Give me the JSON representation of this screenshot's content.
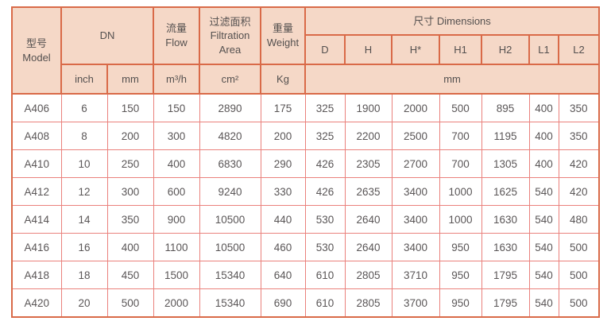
{
  "table": {
    "title": "filter model specification table",
    "header": {
      "model": "型号\nModel",
      "dn": "DN",
      "flow": "流量\nFlow",
      "filtration_area": "过滤面积\nFiltration\nArea",
      "weight": "重量\nWeight",
      "dimensions": "尺寸 Dimensions",
      "dim_cols": [
        "D",
        "H",
        "H*",
        "H1",
        "H2",
        "L1",
        "L2"
      ],
      "units": {
        "inch": "inch",
        "mm": "mm",
        "flow": "m³/h",
        "area": "cm²",
        "weight": "Kg",
        "dim_mm": "mm"
      }
    },
    "columns_order": [
      "model",
      "dn_inch",
      "dn_mm",
      "flow_m3h",
      "filtration_area_cm2",
      "weight_kg",
      "d",
      "h",
      "h_star",
      "h1",
      "h2",
      "l1",
      "l2"
    ],
    "rows": [
      [
        "A406",
        "6",
        "150",
        "150",
        "2890",
        "175",
        "325",
        "1900",
        "2000",
        "500",
        "895",
        "400",
        "350"
      ],
      [
        "A408",
        "8",
        "200",
        "300",
        "4820",
        "200",
        "325",
        "2200",
        "2500",
        "700",
        "1195",
        "400",
        "350"
      ],
      [
        "A410",
        "10",
        "250",
        "400",
        "6830",
        "290",
        "426",
        "2305",
        "2700",
        "700",
        "1305",
        "400",
        "420"
      ],
      [
        "A412",
        "12",
        "300",
        "600",
        "9240",
        "330",
        "426",
        "2635",
        "3400",
        "1000",
        "1625",
        "540",
        "420"
      ],
      [
        "A414",
        "14",
        "350",
        "900",
        "10500",
        "440",
        "530",
        "2640",
        "3400",
        "1000",
        "1630",
        "540",
        "480"
      ],
      [
        "A416",
        "16",
        "400",
        "1100",
        "10500",
        "460",
        "530",
        "2640",
        "3400",
        "950",
        "1630",
        "540",
        "500"
      ],
      [
        "A418",
        "18",
        "450",
        "1500",
        "15340",
        "640",
        "610",
        "2805",
        "3710",
        "950",
        "1795",
        "540",
        "500"
      ],
      [
        "A420",
        "20",
        "500",
        "2000",
        "15340",
        "690",
        "610",
        "2805",
        "3700",
        "950",
        "1795",
        "540",
        "500"
      ]
    ],
    "colors": {
      "header_bg": "#f5d8c7",
      "header_border": "#d96a48",
      "body_border": "#ea817c",
      "header_text": "#54504f",
      "body_text": "#5a5657"
    }
  }
}
